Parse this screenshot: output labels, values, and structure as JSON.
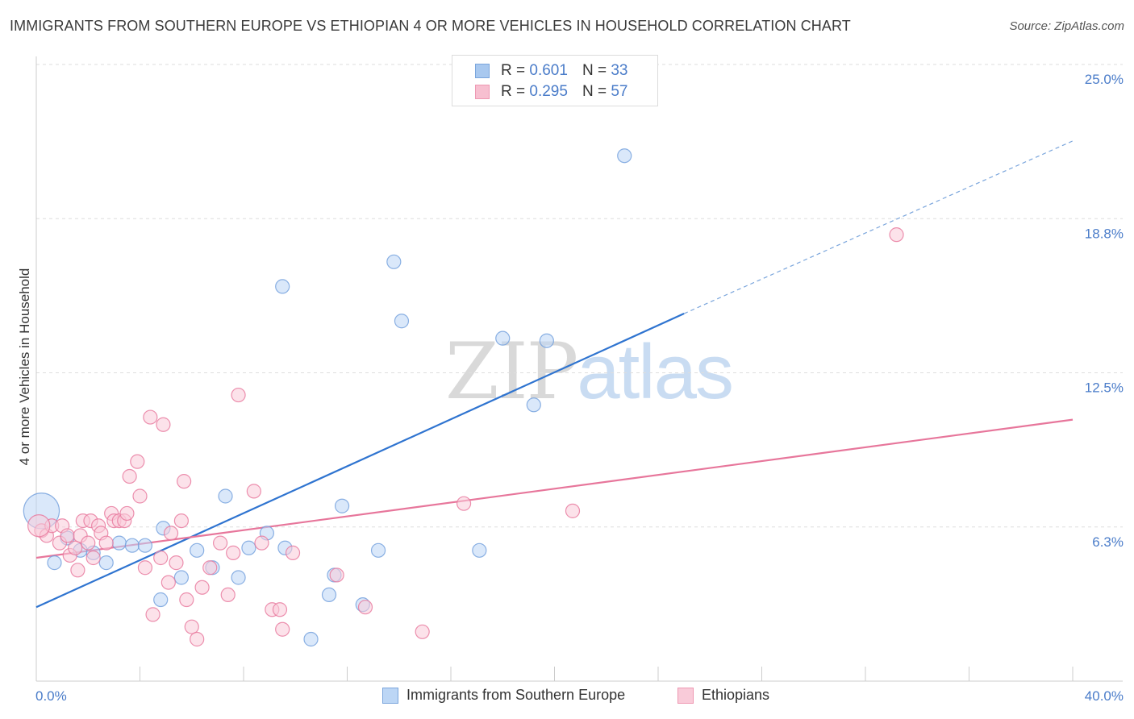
{
  "header": {
    "title": "IMMIGRANTS FROM SOUTHERN EUROPE VS ETHIOPIAN 4 OR MORE VEHICLES IN HOUSEHOLD CORRELATION CHART",
    "source": "Source: ZipAtlas.com"
  },
  "watermark": {
    "part1": "ZIP",
    "part2": "atlas"
  },
  "legend_top": {
    "rows": [
      {
        "r_label": "R = ",
        "r_value": "0.601",
        "n_label": "N = ",
        "n_value": "33",
        "color": "#a8c8ef",
        "border": "#7aa5dc"
      },
      {
        "r_label": "R = ",
        "r_value": "0.295",
        "n_label": "N = ",
        "n_value": "57",
        "color": "#f7bfd0",
        "border": "#ee98b2"
      }
    ]
  },
  "legend_bottom": {
    "items": [
      {
        "label": "Immigrants from Southern Europe",
        "color": "#bcd6f5",
        "border": "#7aa5dc"
      },
      {
        "label": "Ethiopians",
        "color": "#f9cbd9",
        "border": "#ee98b2"
      }
    ]
  },
  "chart_data": {
    "type": "scatter",
    "title": "IMMIGRANTS FROM SOUTHERN EUROPE VS ETHIOPIAN 4 OR MORE VEHICLES IN HOUSEHOLD CORRELATION CHART",
    "xlabel": "",
    "ylabel": "4 or more Vehicles in Household",
    "xlim": [
      0,
      40
    ],
    "ylim": [
      0,
      25
    ],
    "x_tick_labels": [
      "0.0%",
      "40.0%"
    ],
    "y_ticks": [
      6.25,
      12.5,
      18.75,
      25.0
    ],
    "y_tick_labels": [
      "6.3%",
      "12.5%",
      "18.8%",
      "25.0%"
    ],
    "grid": "horizontal dashed",
    "legend_position": "top-center",
    "series": [
      {
        "name": "Immigrants from Southern Europe",
        "color": "#6f9edc",
        "fill": "#bcd6f5",
        "points": [
          [
            0.2,
            6.9,
            2.6
          ],
          [
            0.7,
            4.8,
            1
          ],
          [
            1.2,
            5.8,
            1
          ],
          [
            1.7,
            5.3,
            1
          ],
          [
            2.2,
            5.2,
            1
          ],
          [
            2.7,
            4.8,
            1
          ],
          [
            3.2,
            5.6,
            1
          ],
          [
            3.7,
            5.5,
            1
          ],
          [
            4.2,
            5.5,
            1
          ],
          [
            4.8,
            3.3,
            1
          ],
          [
            4.9,
            6.2,
            1
          ],
          [
            5.6,
            4.2,
            1
          ],
          [
            6.2,
            5.3,
            1
          ],
          [
            6.8,
            4.6,
            1
          ],
          [
            7.3,
            7.5,
            1
          ],
          [
            7.8,
            4.2,
            1
          ],
          [
            8.2,
            5.4,
            1
          ],
          [
            8.9,
            6.0,
            1
          ],
          [
            9.5,
            16.0,
            1
          ],
          [
            9.6,
            5.4,
            1
          ],
          [
            10.6,
            1.7,
            1
          ],
          [
            11.3,
            3.5,
            1
          ],
          [
            11.5,
            4.3,
            1
          ],
          [
            11.8,
            7.1,
            1
          ],
          [
            12.6,
            3.1,
            1
          ],
          [
            13.2,
            5.3,
            1
          ],
          [
            13.8,
            17.0,
            1
          ],
          [
            14.1,
            14.6,
            1
          ],
          [
            17.1,
            5.3,
            1
          ],
          [
            18.0,
            13.9,
            1
          ],
          [
            19.2,
            11.2,
            1
          ],
          [
            19.7,
            13.8,
            1
          ],
          [
            22.7,
            21.3,
            1
          ]
        ],
        "trend": {
          "x0": 0,
          "y0": 3.0,
          "x1": 25,
          "y1": 14.9,
          "x_dash_end": 40,
          "y_dash_end": 21.9
        }
      },
      {
        "name": "Ethiopians",
        "color": "#e7769b",
        "fill": "#f9cbd9",
        "points": [
          [
            0.2,
            6.1,
            1
          ],
          [
            0.4,
            5.9,
            1
          ],
          [
            0.6,
            6.3,
            1
          ],
          [
            0.9,
            5.6,
            1
          ],
          [
            1.0,
            6.3,
            1
          ],
          [
            1.2,
            5.9,
            1
          ],
          [
            1.3,
            5.1,
            1
          ],
          [
            1.5,
            5.4,
            1
          ],
          [
            1.6,
            4.5,
            1
          ],
          [
            1.7,
            5.9,
            1
          ],
          [
            1.8,
            6.5,
            1
          ],
          [
            2.0,
            5.6,
            1
          ],
          [
            2.1,
            6.5,
            1
          ],
          [
            2.2,
            5.0,
            1
          ],
          [
            2.4,
            6.3,
            1
          ],
          [
            2.5,
            6.0,
            1
          ],
          [
            2.7,
            5.6,
            1
          ],
          [
            2.9,
            6.8,
            1
          ],
          [
            3.0,
            6.5,
            1
          ],
          [
            3.2,
            6.5,
            1
          ],
          [
            3.4,
            6.5,
            1
          ],
          [
            3.5,
            6.8,
            1
          ],
          [
            3.6,
            8.3,
            1
          ],
          [
            3.9,
            8.9,
            1
          ],
          [
            4.0,
            7.5,
            1
          ],
          [
            4.2,
            4.6,
            1
          ],
          [
            4.4,
            10.7,
            1
          ],
          [
            4.5,
            2.7,
            1
          ],
          [
            4.8,
            5.0,
            1
          ],
          [
            4.9,
            10.4,
            1
          ],
          [
            5.1,
            4.0,
            1
          ],
          [
            5.2,
            6.0,
            1
          ],
          [
            5.4,
            4.8,
            1
          ],
          [
            5.6,
            6.5,
            1
          ],
          [
            5.7,
            8.1,
            1
          ],
          [
            5.8,
            3.3,
            1
          ],
          [
            6.0,
            2.2,
            1
          ],
          [
            6.2,
            1.7,
            1
          ],
          [
            6.4,
            3.8,
            1
          ],
          [
            6.7,
            4.6,
            1
          ],
          [
            7.1,
            5.6,
            1
          ],
          [
            7.4,
            3.5,
            1
          ],
          [
            7.6,
            5.2,
            1
          ],
          [
            7.8,
            11.6,
            1
          ],
          [
            8.4,
            7.7,
            1
          ],
          [
            8.7,
            5.6,
            1
          ],
          [
            9.1,
            2.9,
            1
          ],
          [
            9.4,
            2.9,
            1
          ],
          [
            9.5,
            2.1,
            1
          ],
          [
            9.9,
            5.2,
            1
          ],
          [
            11.6,
            4.3,
            1
          ],
          [
            12.7,
            3.0,
            1
          ],
          [
            14.9,
            2.0,
            1
          ],
          [
            16.5,
            7.2,
            1
          ],
          [
            20.7,
            6.9,
            1
          ],
          [
            33.2,
            18.1,
            1
          ],
          [
            0.1,
            6.3,
            1.6
          ]
        ],
        "trend": {
          "x0": 0,
          "y0": 5.0,
          "x1": 40,
          "y1": 10.6
        }
      }
    ]
  }
}
